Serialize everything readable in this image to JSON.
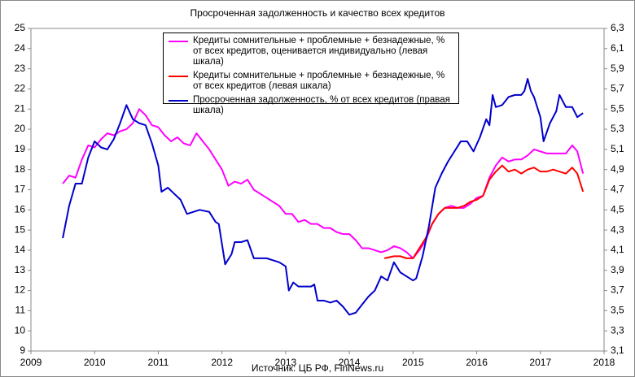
{
  "chart_data": {
    "type": "line",
    "title": "Просроченная задолженность и качество всех кредитов",
    "source": "Источник: ЦБ РФ, FinNews.ru",
    "xlim": [
      2009,
      2018
    ],
    "xticks": [
      2009,
      2010,
      2011,
      2012,
      2013,
      2014,
      2015,
      2016,
      2017,
      2018
    ],
    "ylim": [
      9,
      25
    ],
    "yticks": [
      9,
      10,
      11,
      12,
      13,
      14,
      15,
      16,
      17,
      18,
      19,
      20,
      21,
      22,
      23,
      24,
      25
    ],
    "y2lim": [
      3.1,
      6.3
    ],
    "y2ticks": [
      {
        "value": 3.1,
        "label": "3,1"
      },
      {
        "value": 3.3,
        "label": "3,3"
      },
      {
        "value": 3.5,
        "label": "3,5"
      },
      {
        "value": 3.7,
        "label": "3,7"
      },
      {
        "value": 3.9,
        "label": "3,9"
      },
      {
        "value": 4.1,
        "label": "4,1"
      },
      {
        "value": 4.3,
        "label": "4,3"
      },
      {
        "value": 4.5,
        "label": "4,5"
      },
      {
        "value": 4.7,
        "label": "4,7"
      },
      {
        "value": 4.9,
        "label": "4,9"
      },
      {
        "value": 5.1,
        "label": "5,1"
      },
      {
        "value": 5.3,
        "label": "5,3"
      },
      {
        "value": 5.5,
        "label": "5,5"
      },
      {
        "value": 5.7,
        "label": "5,7"
      },
      {
        "value": 5.9,
        "label": "5,9"
      },
      {
        "value": 6.1,
        "label": "6,1"
      },
      {
        "value": 6.3,
        "label": "6,3"
      }
    ],
    "grid": false,
    "legend": "top",
    "series": [
      {
        "name": "Кредиты сомнительные + проблемные + безнадежные, % от всех кредитов, оценивается индивидуально (левая шкала)",
        "color": "#ff00ff",
        "x": [
          2009.5,
          2009.6,
          2009.7,
          2009.8,
          2009.9,
          2010.0,
          2010.1,
          2010.2,
          2010.3,
          2010.4,
          2010.5,
          2010.6,
          2010.7,
          2010.8,
          2010.9,
          2011.0,
          2011.1,
          2011.2,
          2011.3,
          2011.4,
          2011.5,
          2011.6,
          2011.7,
          2011.8,
          2011.9,
          2012.0,
          2012.1,
          2012.2,
          2012.3,
          2012.4,
          2012.5,
          2012.7,
          2012.9,
          2013.0,
          2013.1,
          2013.2,
          2013.3,
          2013.4,
          2013.5,
          2013.6,
          2013.7,
          2013.8,
          2013.9,
          2014.0,
          2014.1,
          2014.2,
          2014.3,
          2014.4,
          2014.5,
          2014.6,
          2014.7,
          2014.8,
          2014.9,
          2015.0,
          2015.1,
          2015.2,
          2015.3,
          2015.4,
          2015.5,
          2015.6,
          2015.7,
          2015.8,
          2015.9,
          2016.0,
          2016.1,
          2016.2,
          2016.3,
          2016.4,
          2016.5,
          2016.6,
          2016.7,
          2016.8,
          2016.9,
          2017.0,
          2017.1,
          2017.2,
          2017.3,
          2017.4,
          2017.5,
          2017.58,
          2017.67
        ],
        "values": [
          17.3,
          17.7,
          17.6,
          18.5,
          19.2,
          19.1,
          19.5,
          19.8,
          19.7,
          19.9,
          20.0,
          20.3,
          21.0,
          20.7,
          20.2,
          20.1,
          19.7,
          19.4,
          19.6,
          19.3,
          19.2,
          19.8,
          19.4,
          19.0,
          18.5,
          18.0,
          17.2,
          17.4,
          17.3,
          17.5,
          17.0,
          16.6,
          16.2,
          15.8,
          15.8,
          15.4,
          15.5,
          15.3,
          15.3,
          15.1,
          15.1,
          14.9,
          14.8,
          14.8,
          14.5,
          14.1,
          14.1,
          14.0,
          13.9,
          14.0,
          14.2,
          14.1,
          13.9,
          13.6,
          14.0,
          14.5,
          15.3,
          15.8,
          16.1,
          16.2,
          16.1,
          16.1,
          16.3,
          16.6,
          16.7,
          17.6,
          18.2,
          18.6,
          18.4,
          18.5,
          18.5,
          18.7,
          19.0,
          18.9,
          18.8,
          18.8,
          18.8,
          18.8,
          19.2,
          18.9,
          17.8
        ]
      },
      {
        "name": "Кредиты сомнительные + проблемные + безнадежные, % от всех кредитов (левая шкала)",
        "color": "#ff0000",
        "x": [
          2014.55,
          2014.7,
          2014.8,
          2014.9,
          2015.0,
          2015.1,
          2015.2,
          2015.3,
          2015.4,
          2015.5,
          2015.6,
          2015.7,
          2015.8,
          2015.9,
          2016.0,
          2016.1,
          2016.2,
          2016.3,
          2016.4,
          2016.5,
          2016.6,
          2016.7,
          2016.8,
          2016.9,
          2017.0,
          2017.1,
          2017.2,
          2017.3,
          2017.4,
          2017.5,
          2017.58,
          2017.67
        ],
        "values": [
          13.6,
          13.7,
          13.7,
          13.6,
          13.6,
          14.1,
          14.6,
          15.3,
          15.8,
          16.1,
          16.1,
          16.1,
          16.2,
          16.4,
          16.5,
          16.7,
          17.5,
          17.9,
          18.2,
          17.9,
          18.0,
          17.8,
          18.0,
          18.1,
          17.9,
          17.9,
          18.0,
          17.9,
          17.8,
          18.1,
          17.8,
          16.9
        ]
      },
      {
        "name": "Просроченная задолженность, % от всех  кредитов (правая шкала)",
        "color": "#0000cc",
        "axis": "y2",
        "x": [
          2009.5,
          2009.6,
          2009.7,
          2009.8,
          2009.9,
          2010.0,
          2010.1,
          2010.2,
          2010.3,
          2010.4,
          2010.5,
          2010.6,
          2010.7,
          2010.8,
          2010.9,
          2011.0,
          2011.05,
          2011.15,
          2011.25,
          2011.35,
          2011.45,
          2011.55,
          2011.65,
          2011.8,
          2011.9,
          2011.95,
          2012.05,
          2012.15,
          2012.2,
          2012.3,
          2012.4,
          2012.5,
          2012.6,
          2012.7,
          2012.8,
          2012.9,
          2013.0,
          2013.05,
          2013.12,
          2013.2,
          2013.3,
          2013.4,
          2013.45,
          2013.5,
          2013.6,
          2013.7,
          2013.8,
          2013.9,
          2014.0,
          2014.1,
          2014.2,
          2014.3,
          2014.4,
          2014.5,
          2014.6,
          2014.7,
          2014.8,
          2014.9,
          2015.0,
          2015.05,
          2015.15,
          2015.25,
          2015.35,
          2015.45,
          2015.55,
          2015.65,
          2015.75,
          2015.85,
          2015.95,
          2016.05,
          2016.15,
          2016.2,
          2016.25,
          2016.3,
          2016.4,
          2016.5,
          2016.6,
          2016.7,
          2016.75,
          2016.8,
          2016.85,
          2016.9,
          2017.0,
          2017.05,
          2017.15,
          2017.25,
          2017.3,
          2017.4,
          2017.5,
          2017.58,
          2017.67
        ],
        "values": [
          4.22,
          4.54,
          4.76,
          4.76,
          5.02,
          5.18,
          5.12,
          5.1,
          5.2,
          5.36,
          5.54,
          5.4,
          5.36,
          5.34,
          5.16,
          4.94,
          4.68,
          4.72,
          4.66,
          4.6,
          4.46,
          4.48,
          4.5,
          4.48,
          4.38,
          4.36,
          3.96,
          4.06,
          4.18,
          4.18,
          4.2,
          4.02,
          4.02,
          4.02,
          4.0,
          3.98,
          3.94,
          3.7,
          3.78,
          3.74,
          3.74,
          3.74,
          3.76,
          3.6,
          3.6,
          3.58,
          3.6,
          3.54,
          3.46,
          3.48,
          3.56,
          3.64,
          3.7,
          3.84,
          3.8,
          3.98,
          3.88,
          3.84,
          3.8,
          3.82,
          4.04,
          4.34,
          4.72,
          4.86,
          4.98,
          5.08,
          5.18,
          5.18,
          5.08,
          5.22,
          5.4,
          5.34,
          5.64,
          5.52,
          5.54,
          5.62,
          5.64,
          5.64,
          5.68,
          5.8,
          5.68,
          5.62,
          5.42,
          5.18,
          5.36,
          5.48,
          5.64,
          5.52,
          5.52,
          5.42,
          5.46
        ]
      }
    ]
  }
}
